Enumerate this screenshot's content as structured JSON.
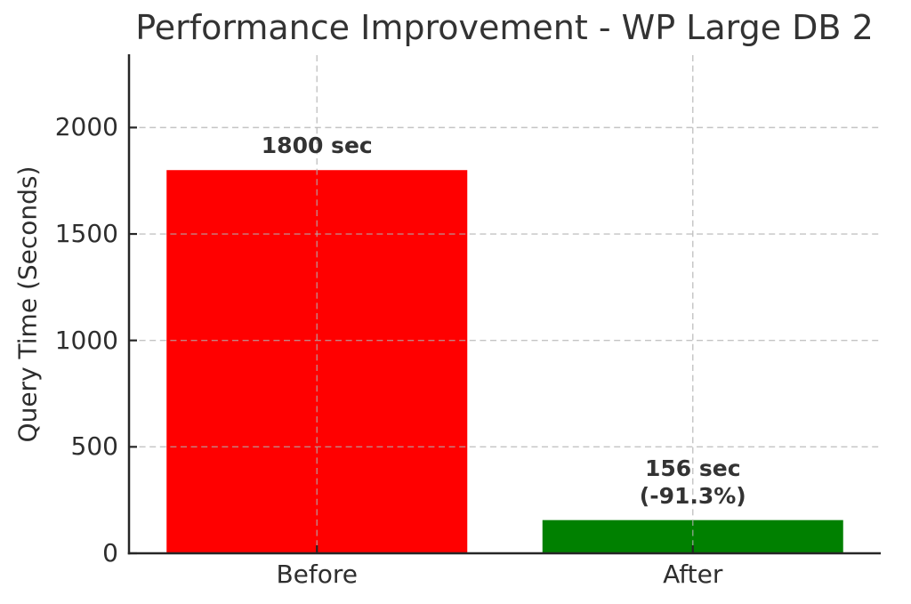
{
  "chart_data": {
    "type": "bar",
    "title": "Performance Improvement - WP Large DB 2",
    "ylabel": "Query Time (Seconds)",
    "xlabel": "",
    "categories": [
      "Before",
      "After"
    ],
    "values": [
      1800,
      156
    ],
    "bar_colors": [
      "#ff0000",
      "#008000"
    ],
    "bar_annotations": [
      [
        "1800 sec"
      ],
      [
        "156 sec",
        "(-91.3%)"
      ]
    ],
    "improvement_pct": "-91.3%",
    "yticks": [
      "0",
      "500",
      "1000",
      "1500",
      "2000"
    ],
    "ytick_values": [
      0,
      500,
      1000,
      1500,
      2000
    ],
    "ylim": [
      0,
      2340
    ],
    "grid": "dashed",
    "legend": "none",
    "colors": {
      "axis": "#262626",
      "text": "#333333",
      "grid": "#b0b0b0",
      "background": "#ffffff"
    }
  }
}
